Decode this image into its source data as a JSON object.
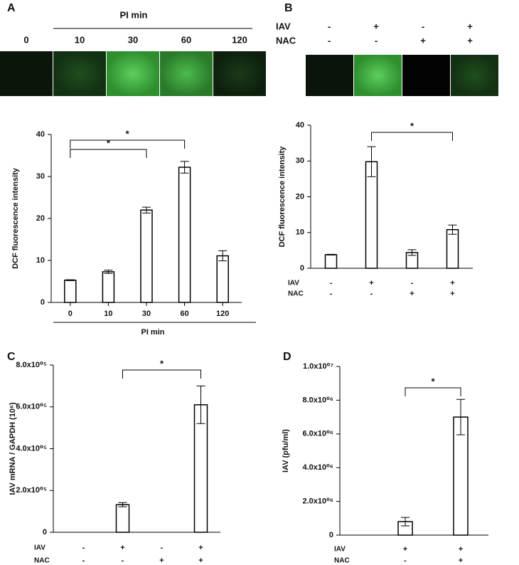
{
  "chart_data": [
    {
      "type": "bar",
      "panel": "A",
      "x_label": "PI min",
      "y_label": "DCF fluorescence intensity",
      "categories": [
        "0",
        "10",
        "30",
        "60",
        "120"
      ],
      "values": [
        5.3,
        7.3,
        22,
        32.2,
        11.1
      ],
      "errors": [
        0.1,
        0.4,
        0.7,
        1.4,
        1.2
      ],
      "ylim": [
        0,
        40
      ],
      "yticks": [
        0,
        10,
        20,
        30,
        40
      ],
      "color": "#ffffff",
      "significance": [
        {
          "between": [
            0,
            2
          ],
          "label": "*"
        },
        {
          "between": [
            0,
            3
          ],
          "label": "*"
        }
      ]
    },
    {
      "type": "bar",
      "panel": "B",
      "y_label": "DCF fluorescence intensity",
      "conditions": [
        {
          "name": "IAV",
          "values": [
            "-",
            "+",
            "-",
            "+"
          ]
        },
        {
          "name": "NAC",
          "values": [
            "-",
            "-",
            "+",
            "+"
          ]
        }
      ],
      "values": [
        3.8,
        29.8,
        4.4,
        10.8
      ],
      "errors": [
        0.1,
        4.2,
        0.8,
        1.3
      ],
      "ylim": [
        0,
        40
      ],
      "yticks": [
        0,
        10,
        20,
        30,
        40
      ],
      "color": "#ffffff",
      "significance": [
        {
          "between": [
            1,
            3
          ],
          "label": "*"
        }
      ]
    },
    {
      "type": "bar",
      "panel": "C",
      "y_label": "IAV mRNA / GAPDH (10⁶)",
      "conditions": [
        {
          "name": "IAV",
          "values": [
            "-",
            "+",
            "-",
            "+"
          ]
        },
        {
          "name": "NAC",
          "values": [
            "-",
            "-",
            "+",
            "+"
          ]
        }
      ],
      "values": [
        0,
        132000,
        0,
        610000
      ],
      "errors": [
        0,
        10000,
        0,
        90000
      ],
      "ylim": [
        0,
        800000
      ],
      "yticks": [
        0,
        {
          "value": 200000,
          "label": "2.0x10⁰⁵"
        },
        {
          "value": 400000,
          "label": "4.0x10⁰⁵"
        },
        {
          "value": 600000,
          "label": "6.0x10⁰⁵"
        },
        {
          "value": 800000,
          "label": "8.0x10⁰⁵"
        }
      ],
      "color": "#ffffff",
      "significance": [
        {
          "between": [
            1,
            3
          ],
          "label": "*"
        }
      ]
    },
    {
      "type": "bar",
      "panel": "D",
      "y_label": "IAV (pfu/ml)",
      "conditions": [
        {
          "name": "IAV",
          "values": [
            "+",
            "+"
          ]
        },
        {
          "name": "NAC",
          "values": [
            "-",
            "+"
          ]
        }
      ],
      "values": [
        800000,
        7000000
      ],
      "errors": [
        250000,
        1050000
      ],
      "ylim": [
        0,
        10000000
      ],
      "yticks": [
        0,
        {
          "value": 2000000,
          "label": "2.0x10⁰⁶"
        },
        {
          "value": 4000000,
          "label": "4.0x10⁰⁶"
        },
        {
          "value": 6000000,
          "label": "6.0x10⁰⁶"
        },
        {
          "value": 8000000,
          "label": "8.0x10⁰⁶"
        },
        {
          "value": 10000000,
          "label": "1.0x10⁰⁷"
        }
      ],
      "color": "#ffffff",
      "significance": [
        {
          "between": [
            0,
            1
          ],
          "label": "*"
        }
      ]
    }
  ]
}
